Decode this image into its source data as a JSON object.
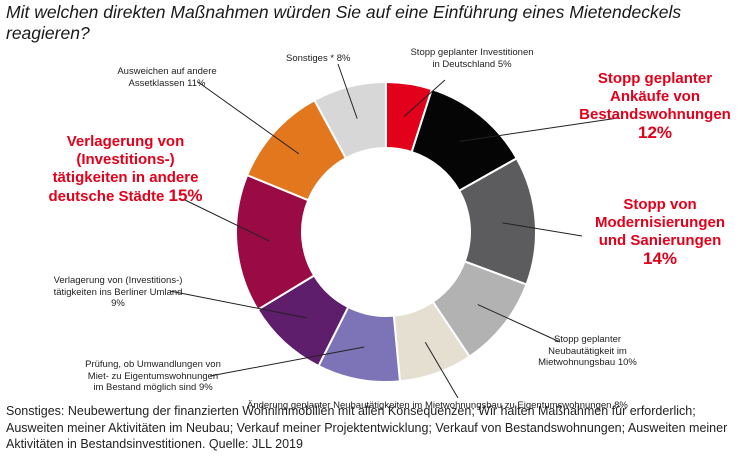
{
  "chart_data": {
    "type": "pie",
    "title": "Mit welchen direkten Maßnahmen würden Sie auf eine Einführung eines Mietendeckels reagieren?",
    "slices": [
      {
        "label": "Stopp geplanter Investitionen in Deutschland",
        "value": 5,
        "pct_text": "5%",
        "color": "#e3001b"
      },
      {
        "label": "Stopp geplanter Ankäufe von Bestandswohnungen",
        "value": 12,
        "pct_text": "12%",
        "color": "#050505"
      },
      {
        "label": "Stopp von Modernisierungen und Sanierungen",
        "value": 14,
        "pct_text": "14%",
        "color": "#5c5c5e"
      },
      {
        "label": "Stopp geplanter Neubautätigkeit im Mietwohnungsbau",
        "value": 10,
        "pct_text": "10%",
        "color": "#b2b2b2"
      },
      {
        "label": "Änderung geplanter Neubautätigkeiten im Mietwohnungsbau zu Eigentumswohnungen",
        "value": 8,
        "pct_text": "8%",
        "color": "#e4dfd1"
      },
      {
        "label": "Prüfung, ob Umwandlungen von Miet- zu Eigentumswohnungen im Bestand möglich sind",
        "value": 9,
        "pct_text": "9%",
        "color": "#7d74b7"
      },
      {
        "label": "Verlagerung von (Investitions-) tätigkeiten ins Berliner Umland",
        "value": 9,
        "pct_text": "9%",
        "color": "#5e1e6c"
      },
      {
        "label": "Verlagerung von (Investitions-) tätigkeiten in andere deutsche Städte",
        "value": 15,
        "pct_text": "15%",
        "color": "#9a0b46"
      },
      {
        "label": "Ausweichen auf andere Assetklassen",
        "value": 11,
        "pct_text": "11%",
        "color": "#e3771e"
      },
      {
        "label": "Sonstiges *",
        "value": 8,
        "pct_text": "8%",
        "color": "#d7d7d7"
      }
    ],
    "labels": {
      "s0": {
        "lines": [
          "Stopp geplanter Investitionen",
          "in Deutschland"
        ],
        "pct": "5%"
      },
      "s1": {
        "lines": [
          "Stopp geplanter",
          "Ankäufe von",
          "Bestandswohnungen"
        ],
        "pct": "12%"
      },
      "s2": {
        "lines": [
          "Stopp von",
          "Modernisierungen",
          "und Sanierungen"
        ],
        "pct": "14%"
      },
      "s3": {
        "lines": [
          "Stopp geplanter",
          "Neubautätigkeit im",
          "Mietwohnungsbau"
        ],
        "pct": "10%"
      },
      "s4": {
        "lines": [
          "Änderung geplanter Neubautätigkeiten im Mietwohnungsbau zu Eigentumswohnungen"
        ],
        "pct": "8%"
      },
      "s5": {
        "lines": [
          "Prüfung, ob Umwandlungen von",
          "Miet- zu Eigentumswohnungen",
          "im Bestand möglich sind"
        ],
        "pct": "9%"
      },
      "s6": {
        "lines": [
          "Verlagerung von (Investitions-)",
          "tätigkeiten ins Berliner Umland"
        ],
        "pct": "9%"
      },
      "s7": {
        "lines": [
          "Verlagerung von",
          "(Investitions-)",
          "tätigkeiten in andere",
          "deutsche Städte"
        ],
        "pct": "15%"
      },
      "s8": {
        "lines": [
          "Ausweichen auf andere",
          "Assetklassen"
        ],
        "pct": "11%"
      },
      "s9": {
        "lines": [
          "Sonstiges *"
        ],
        "pct": "8%"
      }
    },
    "footnote": "Sonstiges: Neubewertung der finanzierten Wohnimmobilien mit allen Konsequenzen; Wir halten Maßnahmen für erforderlich; Ausweiten meiner Aktivitäten im Neubau; Verkauf meiner Projektentwicklung; Verkauf von Bestandswohnungen; Ausweiten meiner Aktivitäten in Bestandsinvestitionen. Quelle: JLL 2019"
  }
}
